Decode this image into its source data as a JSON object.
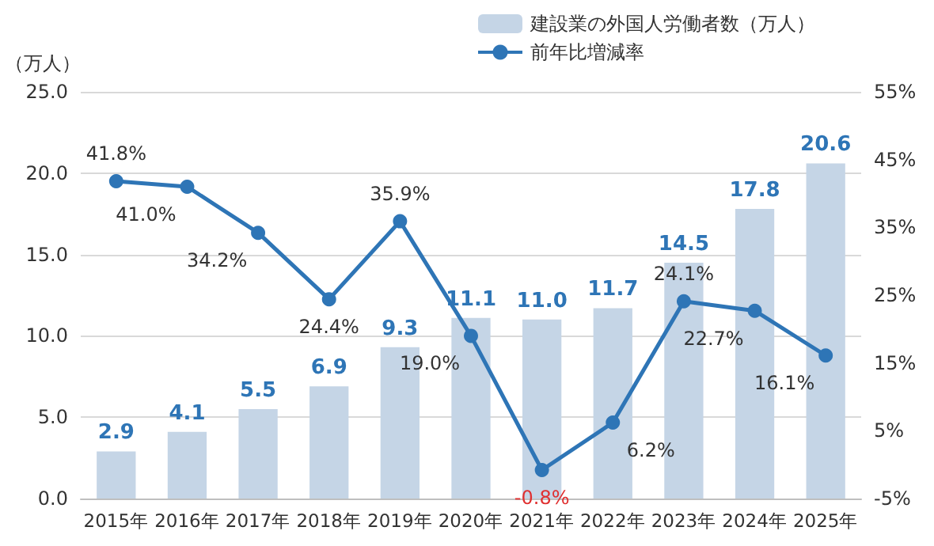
{
  "chart_data": {
    "type": "bar",
    "ylabel": "（万人）",
    "categories": [
      "2015年",
      "2016年",
      "2017年",
      "2018年",
      "2019年",
      "2020年",
      "2021年",
      "2022年",
      "2023年",
      "2024年",
      "2025年"
    ],
    "series": [
      {
        "name": "建設業の外国人労働者数（万人）",
        "color": "#c5d5e6",
        "values": [
          2.9,
          4.1,
          5.5,
          6.9,
          9.3,
          11.1,
          11.0,
          11.7,
          14.5,
          17.8,
          20.6
        ],
        "value_labels": [
          "2.9",
          "4.1",
          "5.5",
          "6.9",
          "9.3",
          "11.1",
          "11.0",
          "11.7",
          "14.5",
          "17.8",
          "20.6"
        ]
      },
      {
        "name": "前年比増減率",
        "type": "line",
        "axis": "y2",
        "color": "#2e75b6",
        "marker": "circle",
        "values": [
          41.8,
          41.0,
          34.2,
          24.4,
          35.9,
          19.0,
          -0.8,
          6.2,
          24.1,
          22.7,
          16.1
        ],
        "value_labels": [
          "41.8%",
          "41.0%",
          "34.2%",
          "24.4%",
          "35.9%",
          "19.0%",
          "-0.8%",
          "6.2%",
          "24.1%",
          "22.7%",
          "16.1%"
        ]
      }
    ],
    "ylim": [
      0,
      25
    ],
    "yticks": [
      {
        "value": 0,
        "label": "0.0"
      },
      {
        "value": 5,
        "label": "5.0"
      },
      {
        "value": 10,
        "label": "10.0"
      },
      {
        "value": 15,
        "label": "15.0"
      },
      {
        "value": 20,
        "label": "20.0"
      },
      {
        "value": 25,
        "label": "25.0"
      }
    ],
    "y2lim": [
      -5,
      55
    ],
    "y2ticks": [
      {
        "value": -5,
        "label": "-5%"
      },
      {
        "value": 5,
        "label": "5%"
      },
      {
        "value": 15,
        "label": "15%"
      },
      {
        "value": 25,
        "label": "25%"
      },
      {
        "value": 35,
        "label": "35%"
      },
      {
        "value": 45,
        "label": "45%"
      },
      {
        "value": 55,
        "label": "55%"
      }
    ],
    "grid": "y",
    "legend": "top right"
  }
}
